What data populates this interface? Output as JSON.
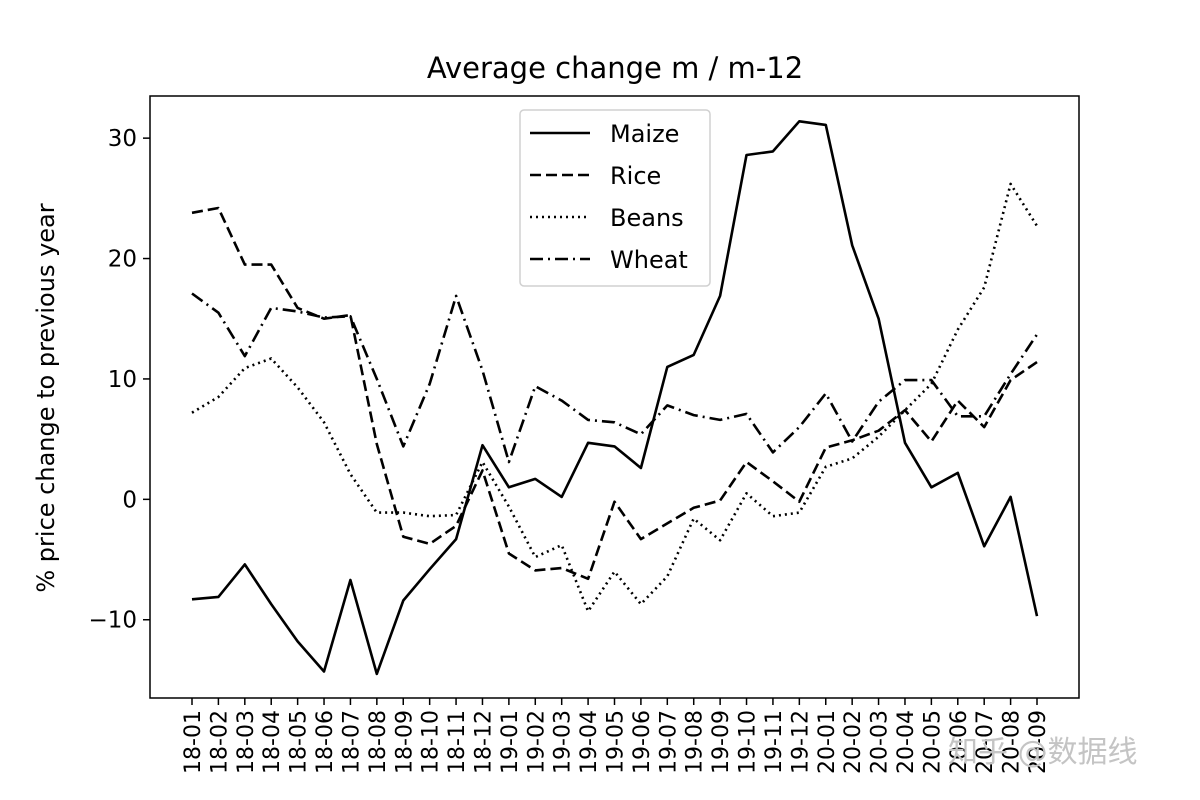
{
  "watermark": "知乎 @数据线",
  "chart_data": {
    "type": "line",
    "title": "Average change m / m-12",
    "xlabel": "",
    "ylabel": "% price change to previous year",
    "ylim": [
      -16.5,
      33.5
    ],
    "yticks": [
      -10,
      0,
      10,
      20,
      30
    ],
    "ytick_labels": [
      "−10",
      "0",
      "10",
      "20",
      "30"
    ],
    "grid": false,
    "legend_position": "upper center",
    "categories": [
      "18-01",
      "18-02",
      "18-03",
      "18-04",
      "18-05",
      "18-06",
      "18-07",
      "18-08",
      "18-09",
      "18-10",
      "18-11",
      "18-12",
      "19-01",
      "19-02",
      "19-03",
      "19-04",
      "19-05",
      "19-06",
      "19-07",
      "19-08",
      "19-09",
      "19-10",
      "19-11",
      "19-12",
      "20-01",
      "20-02",
      "20-03",
      "20-04",
      "20-05",
      "20-06",
      "20-07",
      "20-08",
      "20-09"
    ],
    "series": [
      {
        "name": "Maize",
        "dash": "solid",
        "values": [
          -8.3,
          -8.1,
          -5.4,
          -8.7,
          -11.8,
          -14.3,
          -6.7,
          -14.5,
          -8.4,
          -5.8,
          -3.3,
          4.5,
          1.0,
          1.7,
          0.2,
          4.7,
          4.4,
          2.6,
          11.0,
          12.0,
          16.9,
          28.6,
          28.9,
          31.4,
          31.1,
          21.1,
          15.0,
          4.7,
          1.0,
          2.2,
          -3.9,
          0.2,
          -9.7
        ]
      },
      {
        "name": "Rice",
        "dash": "dashed",
        "values": [
          23.8,
          24.2,
          19.5,
          19.5,
          15.9,
          15.0,
          15.3,
          4.6,
          -3.1,
          -3.7,
          -2.2,
          2.4,
          -4.5,
          -5.9,
          -5.7,
          -6.6,
          -0.2,
          -3.3,
          -2.0,
          -0.7,
          -0.1,
          3.1,
          1.5,
          -0.2,
          4.3,
          4.9,
          5.7,
          7.4,
          4.8,
          8.2,
          6.0,
          9.9,
          11.4
        ]
      },
      {
        "name": "Beans",
        "dash": "dotted",
        "values": [
          7.2,
          8.5,
          10.9,
          11.7,
          9.3,
          6.4,
          2.1,
          -1.1,
          -1.1,
          -1.4,
          -1.3,
          3.1,
          -0.6,
          -4.8,
          -3.8,
          -9.3,
          -6.0,
          -8.7,
          -6.4,
          -1.6,
          -3.4,
          0.5,
          -1.4,
          -1.1,
          2.7,
          3.4,
          5.2,
          7.4,
          9.6,
          14.1,
          17.6,
          26.2,
          22.7
        ]
      },
      {
        "name": "Wheat",
        "dash": "dashdot",
        "values": [
          17.1,
          15.5,
          11.9,
          15.9,
          15.6,
          15.1,
          15.2,
          10.0,
          4.4,
          9.6,
          16.9,
          10.7,
          3.1,
          9.4,
          8.2,
          6.6,
          6.4,
          5.4,
          7.8,
          7.0,
          6.6,
          7.1,
          3.9,
          6.0,
          8.8,
          4.8,
          8.1,
          9.9,
          9.9,
          6.9,
          6.9,
          10.4,
          13.7
        ]
      }
    ]
  }
}
